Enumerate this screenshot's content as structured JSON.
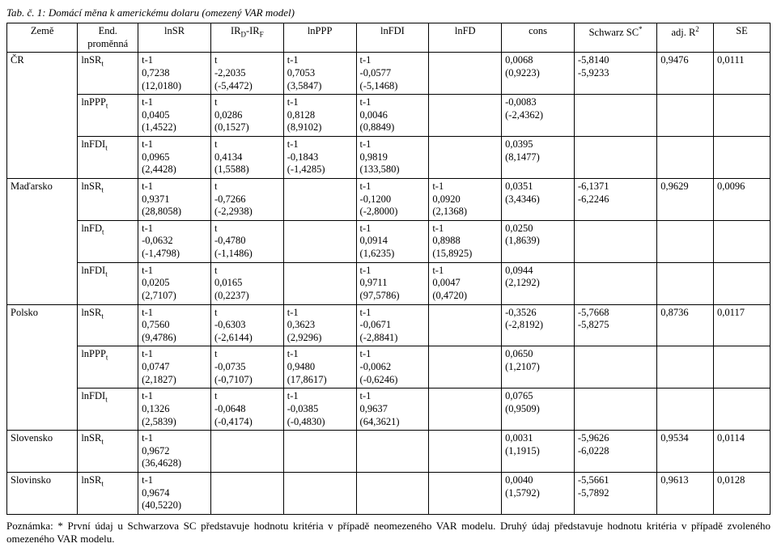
{
  "title": "Tab. č. 1: Domácí měna k americkému dolaru (omezený VAR model)",
  "headers": {
    "country": "Země",
    "endvar": "End. proměnná",
    "lnsr": "lnSR",
    "ir": "IR",
    "ir_sub": "D",
    "ir_suffix": "-IR",
    "ir_sub2": "F",
    "lnppp": "lnPPP",
    "lnfdi": "lnFDI",
    "lnfd": "lnFD",
    "cons": "cons",
    "schwarz": "Schwarz SC",
    "schwarz_sup": "*",
    "adjr2": "adj. R",
    "adjr2_sup": "2",
    "se": "SE"
  },
  "rows": [
    {
      "country": "ČR",
      "endvar": "lnSR",
      "endvar_sub": "t",
      "lnsr": [
        "t-1",
        "0,7238",
        "(12,0180)"
      ],
      "ir": [
        "t",
        "-2,2035",
        "(-5,4472)"
      ],
      "lnppp": [
        "t-1",
        "0,7053",
        "(3,5847)"
      ],
      "lnfdi": [
        "t-1",
        "-0,0577",
        "(-5,1468)"
      ],
      "lnfd": [],
      "cons": [
        "",
        "0,0068",
        "(0,9223)"
      ],
      "schwarz": [
        "-5,8140",
        "-5,9233"
      ],
      "adjr2": "0,9476",
      "se": "0,0111"
    },
    {
      "country": "",
      "endvar": "lnPPP",
      "endvar_sub": "t",
      "lnsr": [
        "t-1",
        "0,0405",
        "(1,4522)"
      ],
      "ir": [
        "t",
        "0,0286",
        "(0,1527)"
      ],
      "lnppp": [
        "t-1",
        "0,8128",
        "(8,9102)"
      ],
      "lnfdi": [
        "t-1",
        "0,0046",
        "(0,8849)"
      ],
      "lnfd": [],
      "cons": [
        "",
        "-0,0083",
        "(-2,4362)"
      ],
      "schwarz": [],
      "adjr2": "",
      "se": ""
    },
    {
      "country": "",
      "endvar": "lnFDI",
      "endvar_sub": "t",
      "lnsr": [
        "t-1",
        "0,0965",
        "(2,4428)"
      ],
      "ir": [
        "t",
        "0,4134",
        "(1,5588)"
      ],
      "lnppp": [
        "t-1",
        "-0,1843",
        "(-1,4285)"
      ],
      "lnfdi": [
        "t-1",
        "0,9819",
        "(133,580)"
      ],
      "lnfd": [],
      "cons": [
        "",
        "0,0395",
        "(8,1477)"
      ],
      "schwarz": [],
      "adjr2": "",
      "se": ""
    },
    {
      "country": "Maďarsko",
      "endvar": "lnSR",
      "endvar_sub": "t",
      "lnsr": [
        "t-1",
        "0,9371",
        "(28,8058)"
      ],
      "ir": [
        "t",
        "-0,7266",
        "(-2,2938)"
      ],
      "lnppp": [],
      "lnfdi": [
        "t-1",
        "-0,1200",
        "(-2,8000)"
      ],
      "lnfd": [
        "t-1",
        "0,0920",
        "(2,1368)"
      ],
      "cons": [
        "",
        "0,0351",
        "(3,4346)"
      ],
      "schwarz": [
        "-6,1371",
        "-6,2246"
      ],
      "adjr2": "0,9629",
      "se": "0,0096"
    },
    {
      "country": "",
      "endvar": "lnFD",
      "endvar_sub": "t",
      "lnsr": [
        "t-1",
        "-0,0632",
        "(-1,4798)"
      ],
      "ir": [
        "t",
        "-0,4780",
        "(-1,1486)"
      ],
      "lnppp": [],
      "lnfdi": [
        "t-1",
        "0,0914",
        "(1,6235)"
      ],
      "lnfd": [
        "t-1",
        "0,8988",
        "(15,8925)"
      ],
      "cons": [
        "",
        "0,0250",
        "(1,8639)"
      ],
      "schwarz": [],
      "adjr2": "",
      "se": ""
    },
    {
      "country": "",
      "endvar": "lnFDI",
      "endvar_sub": "t",
      "lnsr": [
        "t-1",
        "0,0205",
        "(2,7107)"
      ],
      "ir": [
        "t",
        "0,0165",
        "(0,2237)"
      ],
      "lnppp": [],
      "lnfdi": [
        "t-1",
        "0,9711",
        "(97,5786)"
      ],
      "lnfd": [
        "t-1",
        "0,0047",
        "(0,4720)"
      ],
      "cons": [
        "",
        "0,0944",
        "(2,1292)"
      ],
      "schwarz": [],
      "adjr2": "",
      "se": ""
    },
    {
      "country": "Polsko",
      "endvar": "lnSR",
      "endvar_sub": "t",
      "lnsr": [
        "t-1",
        "0,7560",
        "(9,4786)"
      ],
      "ir": [
        "t",
        "-0,6303",
        "(-2,6144)"
      ],
      "lnppp": [
        "t-1",
        "0,3623",
        "(2,9296)"
      ],
      "lnfdi": [
        "t-1",
        "-0,0671",
        "(-2,8841)"
      ],
      "lnfd": [],
      "cons": [
        "",
        "-0,3526",
        "(-2,8192)"
      ],
      "schwarz": [
        "-5,7668",
        "-5,8275"
      ],
      "adjr2": "0,8736",
      "se": "0,0117"
    },
    {
      "country": "",
      "endvar": "lnPPP",
      "endvar_sub": "t",
      "lnsr": [
        "t-1",
        "0,0747",
        "(2,1827)"
      ],
      "ir": [
        "t",
        "-0,0735",
        "(-0,7107)"
      ],
      "lnppp": [
        "t-1",
        "0,9480",
        "(17,8617)"
      ],
      "lnfdi": [
        "t-1",
        "-0,0062",
        "(-0,6246)"
      ],
      "lnfd": [],
      "cons": [
        "",
        "0,0650",
        "(1,2107)"
      ],
      "schwarz": [],
      "adjr2": "",
      "se": ""
    },
    {
      "country": "",
      "endvar": "lnFDI",
      "endvar_sub": "t",
      "lnsr": [
        "t-1",
        "0,1326",
        "(2,5839)"
      ],
      "ir": [
        "t",
        "-0,0648",
        "(-0,4174)"
      ],
      "lnppp": [
        "t-1",
        "-0,0385",
        "(-0,4830)"
      ],
      "lnfdi": [
        "t-1",
        "0,9637",
        "(64,3621)"
      ],
      "lnfd": [],
      "cons": [
        "",
        "0,0765",
        "(0,9509)"
      ],
      "schwarz": [],
      "adjr2": "",
      "se": ""
    },
    {
      "country": "Slovensko",
      "endvar": "lnSR",
      "endvar_sub": "t",
      "lnsr": [
        "t-1",
        "0,9672",
        "(36,4628)"
      ],
      "ir": [],
      "lnppp": [],
      "lnfdi": [],
      "lnfd": [],
      "cons": [
        "",
        "0,0031",
        "(1,1915)"
      ],
      "schwarz": [
        "-5,9626",
        "-6,0228"
      ],
      "adjr2": "0,9534",
      "se": "0,0114"
    },
    {
      "country": "Slovinsko",
      "endvar": "lnSR",
      "endvar_sub": "t",
      "lnsr": [
        "t-1",
        "0,9674",
        "(40,5220)"
      ],
      "ir": [],
      "lnppp": [],
      "lnfdi": [],
      "lnfd": [],
      "cons": [
        "",
        "0,0040",
        "(1,5792)"
      ],
      "schwarz": [
        "-5,5661",
        "-5,7892"
      ],
      "adjr2": "0,9613",
      "se": "0,0128"
    }
  ],
  "note": "Poznámka: * První údaj u Schwarzova SC představuje hodnotu kritéria v případě neomezeného VAR modelu. Druhý údaj představuje hodnotu kritéria v případě zvoleného omezeného VAR modelu."
}
